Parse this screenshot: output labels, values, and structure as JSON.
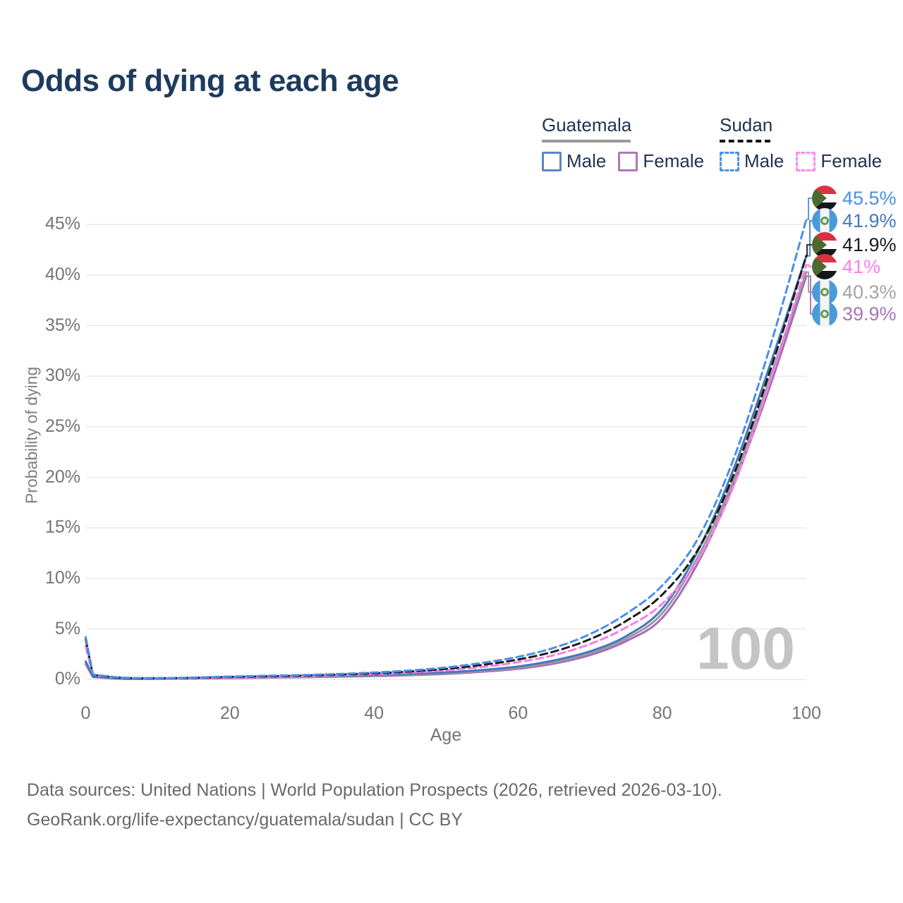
{
  "title": "Odds of dying at each age",
  "legend": {
    "groups": [
      {
        "label": "Guatemala",
        "line_style": "solid",
        "underline_color": "#9a9a9a",
        "items": [
          {
            "label": "Male",
            "color": "#5b85c4",
            "dashed": false
          },
          {
            "label": "Female",
            "color": "#b277b7",
            "dashed": false
          }
        ]
      },
      {
        "label": "Sudan",
        "line_style": "dashed",
        "underline_color": "#151515",
        "items": [
          {
            "label": "Male",
            "color": "#4a8ef0",
            "dashed": true
          },
          {
            "label": "Female",
            "color": "#fc8af0",
            "dashed": true
          }
        ]
      }
    ]
  },
  "chart_data": {
    "type": "line",
    "title": "Odds of dying at each age",
    "xlabel": "Age",
    "ylabel": "Probability of dying",
    "xlim": [
      0,
      100
    ],
    "ylim": [
      0,
      47
    ],
    "grid": true,
    "legend_position": "top-right",
    "watermark": "100",
    "xticks": [
      0,
      20,
      40,
      60,
      80,
      100
    ],
    "yticks": {
      "values": [
        0,
        5,
        10,
        15,
        20,
        25,
        30,
        35,
        40,
        45
      ],
      "labels": [
        "0%",
        "5%",
        "10%",
        "15%",
        "20%",
        "25%",
        "30%",
        "35%",
        "40%",
        "45%"
      ]
    },
    "x": [
      0,
      1,
      5,
      10,
      15,
      20,
      25,
      30,
      35,
      40,
      45,
      50,
      55,
      60,
      65,
      70,
      75,
      80,
      85,
      90,
      95,
      100
    ],
    "unit": "percent",
    "series": [
      {
        "name": "Guatemala Female",
        "country": "Guatemala",
        "sex": "Female",
        "color": "#a76cb8",
        "dashed": false,
        "values": [
          1.5,
          0.25,
          0.08,
          0.07,
          0.1,
          0.15,
          0.19,
          0.23,
          0.28,
          0.34,
          0.43,
          0.56,
          0.77,
          1.07,
          1.58,
          2.42,
          3.8,
          6.1,
          11.6,
          19.4,
          29.1,
          39.9
        ]
      },
      {
        "name": "Guatemala",
        "country": "Guatemala",
        "sex": "Both",
        "color": "#9a9a9a",
        "dashed": false,
        "values": [
          1.65,
          0.28,
          0.09,
          0.08,
          0.12,
          0.2,
          0.25,
          0.29,
          0.34,
          0.4,
          0.5,
          0.64,
          0.86,
          1.18,
          1.74,
          2.62,
          4.05,
          6.55,
          12.2,
          19.9,
          29.9,
          40.3
        ]
      },
      {
        "name": "Guatemala Male",
        "country": "Guatemala",
        "sex": "Male",
        "color": "#4678bd",
        "dashed": false,
        "values": [
          1.8,
          0.3,
          0.1,
          0.1,
          0.15,
          0.25,
          0.3,
          0.35,
          0.4,
          0.47,
          0.57,
          0.72,
          0.95,
          1.3,
          1.9,
          2.8,
          4.3,
          7.0,
          12.8,
          21.0,
          31.2,
          41.9
        ]
      },
      {
        "name": "Sudan Female",
        "country": "Sudan",
        "sex": "Female",
        "color": "#f97ce8",
        "dashed": true,
        "values": [
          3.3,
          0.43,
          0.16,
          0.12,
          0.15,
          0.22,
          0.28,
          0.34,
          0.43,
          0.55,
          0.7,
          0.92,
          1.25,
          1.72,
          2.42,
          3.52,
          5.15,
          7.5,
          11.9,
          19.3,
          29.6,
          41.0
        ]
      },
      {
        "name": "Sudan",
        "country": "Sudan",
        "sex": "Both",
        "color": "#1b1b1b",
        "dashed": true,
        "values": [
          4.0,
          0.47,
          0.18,
          0.14,
          0.18,
          0.27,
          0.33,
          0.4,
          0.5,
          0.63,
          0.8,
          1.06,
          1.45,
          1.98,
          2.78,
          4.0,
          5.8,
          8.4,
          12.9,
          20.4,
          30.6,
          41.9
        ]
      },
      {
        "name": "Sudan Male",
        "country": "Sudan",
        "sex": "Male",
        "color": "#4b8fe8",
        "dashed": true,
        "values": [
          4.2,
          0.5,
          0.2,
          0.15,
          0.2,
          0.3,
          0.38,
          0.45,
          0.55,
          0.7,
          0.9,
          1.2,
          1.65,
          2.25,
          3.15,
          4.5,
          6.5,
          9.3,
          14.0,
          22.0,
          33.0,
          45.5
        ]
      }
    ],
    "end_labels": [
      {
        "series": "Sudan Male",
        "flag": "sudan",
        "text": "45.5%",
        "color": "#4b8fe8"
      },
      {
        "series": "Guatemala Male",
        "flag": "guatemala",
        "text": "41.9%",
        "color": "#4678bd"
      },
      {
        "series": "Sudan",
        "flag": "sudan",
        "text": "41.9%",
        "color": "#1c1c1c"
      },
      {
        "series": "Sudan Female",
        "flag": "sudan",
        "text": "41%",
        "color": "#fb80ee"
      },
      {
        "series": "Guatemala",
        "flag": "guatemala",
        "text": "40.3%",
        "color": "#a3a3a3"
      },
      {
        "series": "Guatemala Female",
        "flag": "guatemala",
        "text": "39.9%",
        "color": "#a874b8"
      }
    ]
  },
  "footer": {
    "line1": "Data sources: United Nations | World Population Prospects (2026, retrieved 2026-03-10).",
    "line2": "GeoRank.org/life-expectancy/guatemala/sudan | CC BY"
  }
}
